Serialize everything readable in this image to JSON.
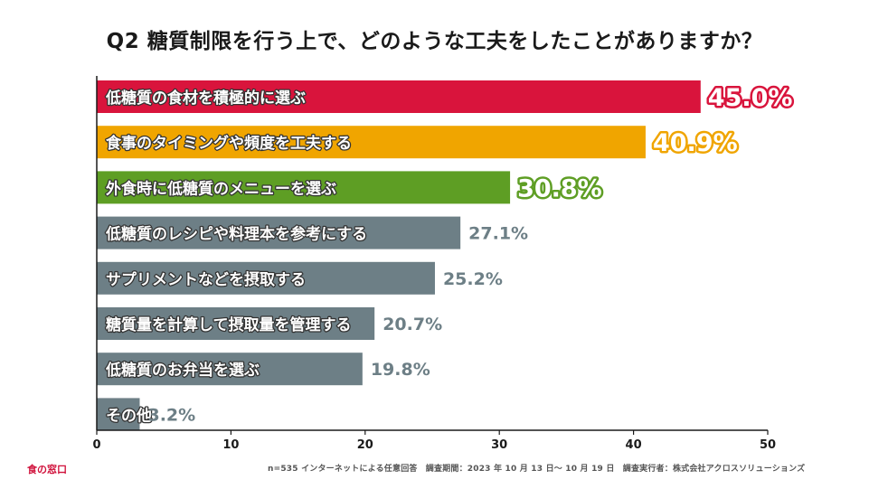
{
  "title": "Q2 糖質制限を行う上で、どのような工夫をしたことがありますか？",
  "brand": "食の窓口",
  "footnote": "n=535 インターネットによる任意回答　調査期間：2023 年 10 月 13 日～ 10 月 19 日　調査実行者：株式会社アクロスソリューションズ",
  "colors": {
    "first": "#d9143c",
    "second": "#f0a500",
    "third": "#5e9e24",
    "other": "#6d7f86",
    "axis": "#1a1a1a"
  },
  "chart_data": {
    "type": "bar",
    "orientation": "horizontal",
    "title": "Q2 糖質制限を行う上で、どのような工夫をしたことがありますか？",
    "categories": [
      "低糖質の食材を積極的に選ぶ",
      "食事のタイミングや頻度を工夫する",
      "外食時に低糖質のメニューを選ぶ",
      "低糖質のレシピや料理本を参考にする",
      "サプリメントなどを摂取する",
      "糖質量を計算して摂取量を管理する",
      "低糖質のお弁当を選ぶ",
      "その他"
    ],
    "values": [
      45.0,
      40.9,
      30.8,
      27.1,
      25.2,
      20.7,
      19.8,
      3.2
    ],
    "value_labels": [
      "45.0%",
      "40.9%",
      "30.8%",
      "27.1%",
      "25.2%",
      "20.7%",
      "19.8%",
      "3.2%"
    ],
    "xlim": [
      0,
      50
    ],
    "xticks": [
      "0",
      "10",
      "20",
      "30",
      "40",
      "50"
    ],
    "grid": false
  }
}
